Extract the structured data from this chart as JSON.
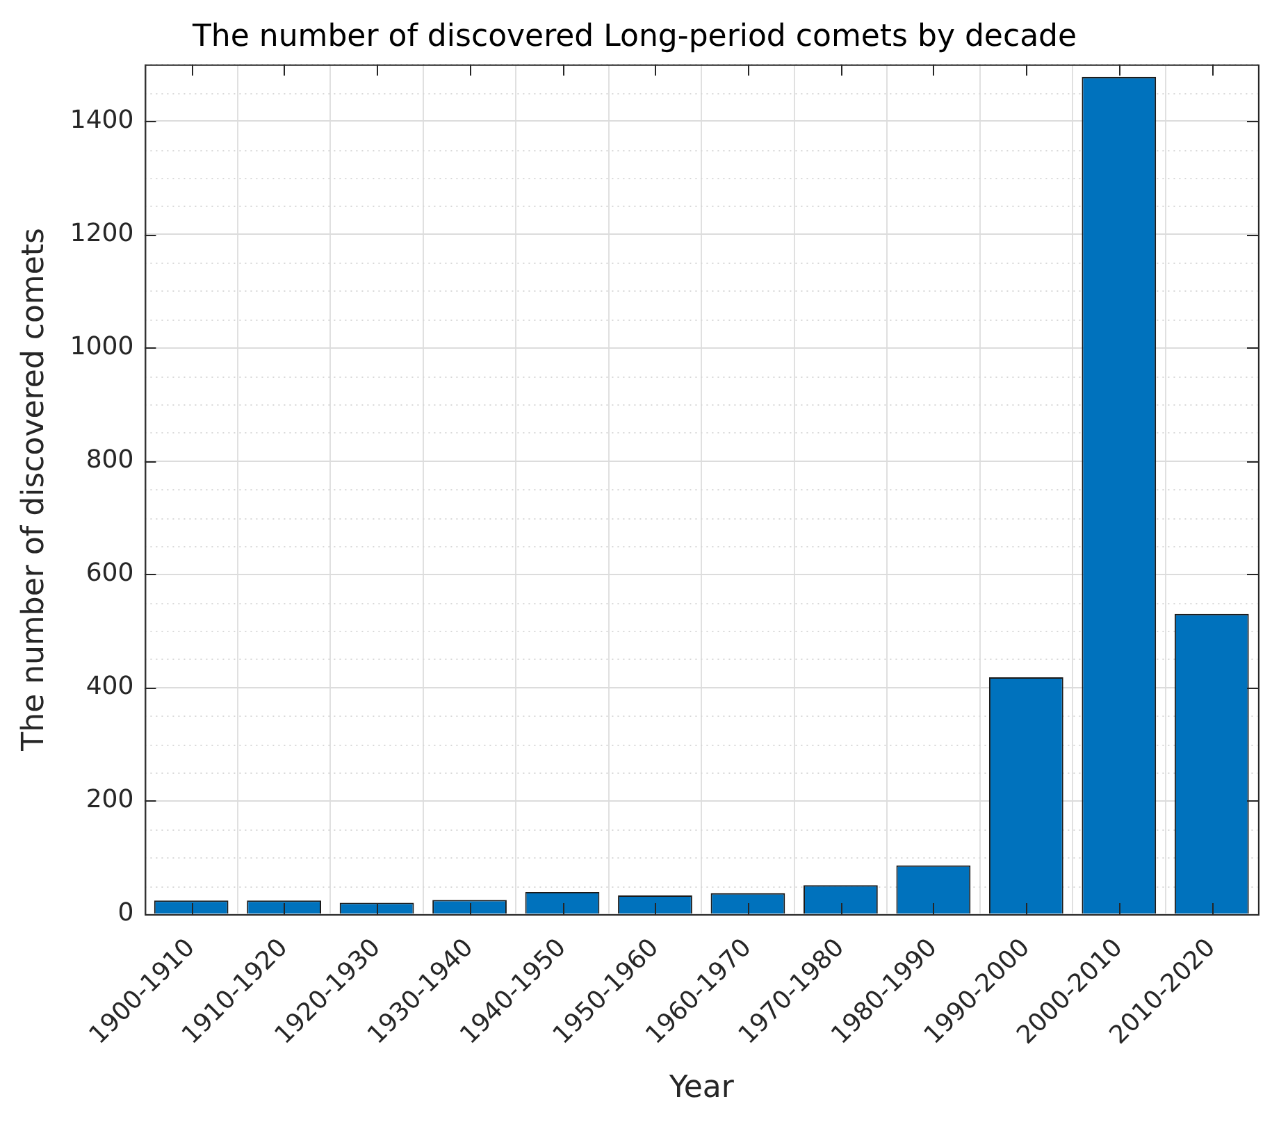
{
  "chart_data": {
    "type": "bar",
    "title": "The number of discovered Long-period comets by decade",
    "xlabel": "Year",
    "ylabel": "The number of discovered comets",
    "categories": [
      "1900-1910",
      "1910-1920",
      "1920-1930",
      "1930-1940",
      "1940-1950",
      "1950-1960",
      "1960-1970",
      "1970-1980",
      "1980-1990",
      "1990-2000",
      "2000-2010",
      "2010-2020"
    ],
    "values": [
      24,
      24,
      20,
      25,
      39,
      33,
      37,
      51,
      86,
      418,
      1478,
      530
    ],
    "color": "#0072bd",
    "ylim": [
      0,
      1500
    ],
    "yticks": [
      0,
      {
        "value": 50,
        "label": null
      },
      {
        "value": 100,
        "label": null
      },
      {
        "value": 150,
        "label": null
      },
      200,
      {
        "value": 250,
        "label": null
      },
      {
        "value": 300,
        "label": null
      },
      {
        "value": 350,
        "label": null
      },
      400,
      {
        "value": 450,
        "label": null
      },
      {
        "value": 500,
        "label": null
      },
      {
        "value": 550,
        "label": null
      },
      600,
      {
        "value": 650,
        "label": null
      },
      {
        "value": 700,
        "label": null
      },
      {
        "value": 750,
        "label": null
      },
      800,
      {
        "value": 850,
        "label": null
      },
      {
        "value": 900,
        "label": null
      },
      {
        "value": 950,
        "label": null
      },
      1000,
      {
        "value": 1050,
        "label": null
      },
      {
        "value": 1100,
        "label": null
      },
      {
        "value": 1150,
        "label": null
      },
      1200,
      {
        "value": 1250,
        "label": null
      },
      {
        "value": 1300,
        "label": null
      },
      {
        "value": 1350,
        "label": null
      },
      1400,
      {
        "value": 1450,
        "label": null
      },
      {
        "value": 1500,
        "label": null
      }
    ],
    "grid": true,
    "legend": false
  }
}
